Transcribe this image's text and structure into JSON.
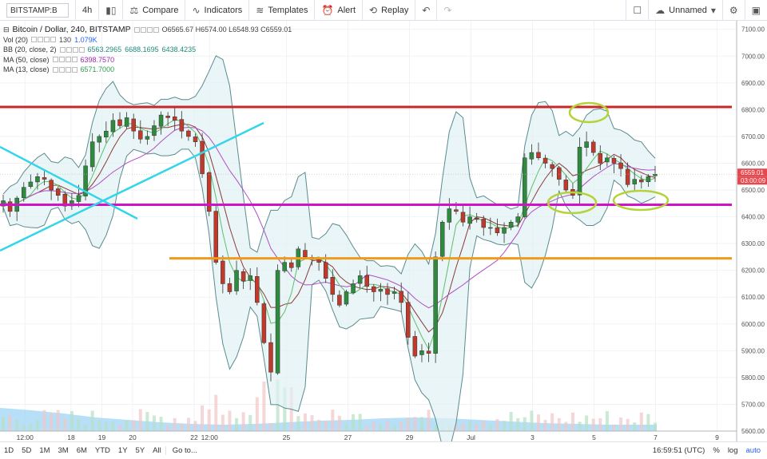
{
  "toolbar": {
    "symbol": "BITSTAMP:B",
    "interval": "4h",
    "compare": "Compare",
    "indicators": "Indicators",
    "templates": "Templates",
    "alert": "Alert",
    "replay": "Replay",
    "layout_name": "Unnamed"
  },
  "legend": {
    "title": "Bitcoin / Dollar, 240, BITSTAMP",
    "ohlc": "O6565.67 H6574.00 L6548.93 C6559.01",
    "vol_label": "Vol (20)",
    "vol_value1": "130",
    "vol_value2": "1.079K",
    "bb_label": "BB (20, close, 2)",
    "bb_v1": "6563.2965",
    "bb_v2": "6688.1695",
    "bb_v3": "6438.4235",
    "ma50_label": "MA (50, close)",
    "ma50_value": "6398.7570",
    "ma13_label": "MA (13, close)",
    "ma13_value": "6571.7000"
  },
  "price_labels": {
    "last": "6559.01",
    "countdown": "03:00:09"
  },
  "bottombar": {
    "ranges": [
      "1D",
      "5D",
      "1M",
      "3M",
      "6M",
      "YTD",
      "1Y",
      "5Y",
      "All"
    ],
    "goto": "Go to...",
    "clock": "16:59:51 (UTC)",
    "percent": "%",
    "log": "log",
    "auto": "auto"
  },
  "chart_data": {
    "type": "candlestick",
    "yticks": [
      5600,
      5700,
      5800,
      5900,
      6000,
      6100,
      6200,
      6300,
      6400,
      6500,
      6600,
      6700,
      6800,
      6900,
      7000,
      7100
    ],
    "ylim": [
      5600,
      7120
    ],
    "xticks": [
      {
        "label": "12:00",
        "pos": 0.5
      },
      {
        "label": "18",
        "pos": 2
      },
      {
        "label": "19",
        "pos": 3
      },
      {
        "label": "20",
        "pos": 4
      },
      {
        "label": "22",
        "pos": 6
      },
      {
        "label": "12:00",
        "pos": 6.5
      },
      {
        "label": "25",
        "pos": 9
      },
      {
        "label": "27",
        "pos": 11
      },
      {
        "label": "29",
        "pos": 13
      },
      {
        "label": "Jul",
        "pos": 15
      },
      {
        "label": "3",
        "pos": 17
      },
      {
        "label": "5",
        "pos": 19
      },
      {
        "label": "7",
        "pos": 21
      },
      {
        "label": "9",
        "pos": 23
      }
    ],
    "horizontal_lines": [
      {
        "price": 6810,
        "color": "#c62828"
      },
      {
        "price": 6445,
        "color": "#d012c8"
      },
      {
        "price": 6245,
        "color": "#f09a1c"
      }
    ],
    "closes": [
      6460,
      6420,
      6470,
      6510,
      6530,
      6550,
      6540,
      6500,
      6480,
      6440,
      6460,
      6480,
      6590,
      6680,
      6700,
      6720,
      6760,
      6740,
      6770,
      6720,
      6690,
      6700,
      6740,
      6780,
      6770,
      6760,
      6720,
      6700,
      6680,
      6560,
      6420,
      6230,
      6150,
      6120,
      6200,
      6160,
      6180,
      6080,
      5930,
      5820,
      6200,
      6230,
      6210,
      6280,
      6250,
      6240,
      6230,
      6170,
      6110,
      6070,
      6120,
      6150,
      6180,
      6140,
      6120,
      6130,
      6110,
      6120,
      6080,
      5950,
      5880,
      5900,
      5890,
      6250,
      6380,
      6430,
      6420,
      6380,
      6400,
      6390,
      6360,
      6360,
      6340,
      6360,
      6380,
      6400,
      6620,
      6640,
      6620,
      6600,
      6580,
      6540,
      6500,
      6480,
      6660,
      6680,
      6640,
      6600,
      6620,
      6600,
      6580,
      6520,
      6540,
      6530,
      6550,
      6559
    ],
    "volume_note": "volume histogram shown at bottom"
  }
}
